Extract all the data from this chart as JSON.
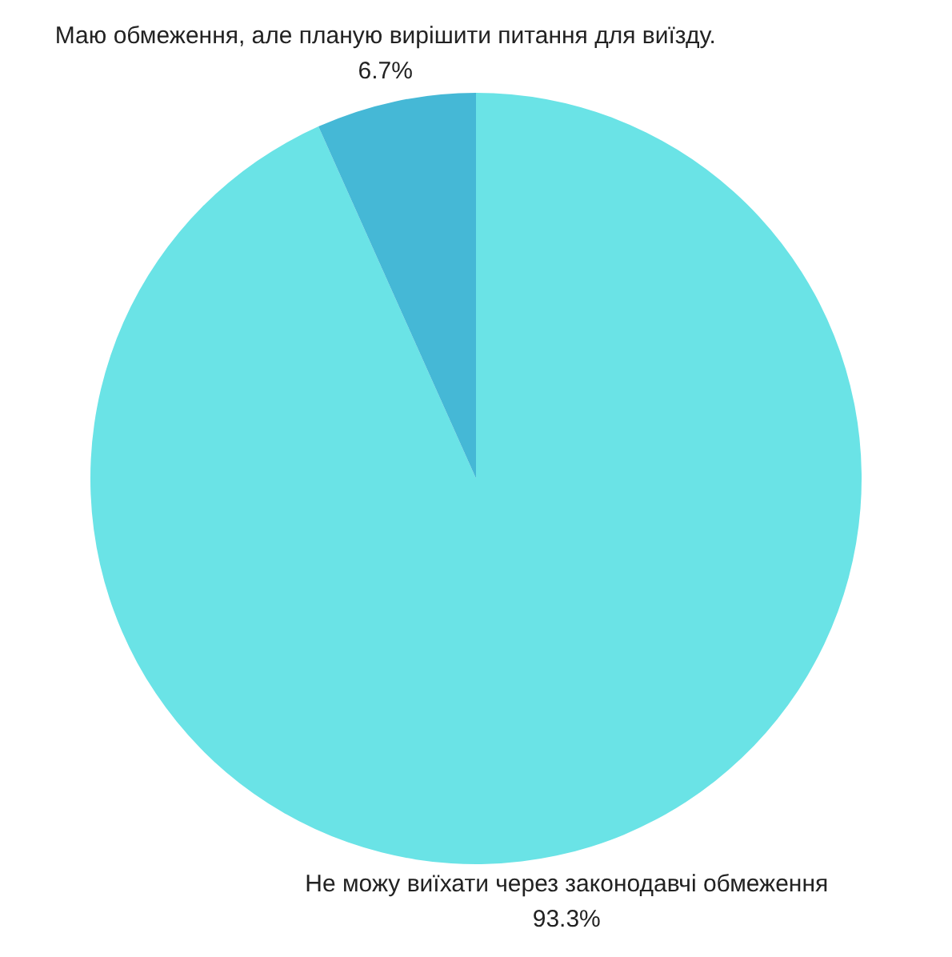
{
  "chart_data": {
    "type": "pie",
    "categories": [
      "Не можу виїхати через законодавчі обмеження",
      "Маю обмеження, але планую вирішити питання для виїзду."
    ],
    "values": [
      93.3,
      6.7
    ],
    "colors": [
      "#6ae3e6",
      "#45b8d6"
    ],
    "value_labels": [
      "93.3%",
      "6.7%"
    ],
    "legend": false
  }
}
